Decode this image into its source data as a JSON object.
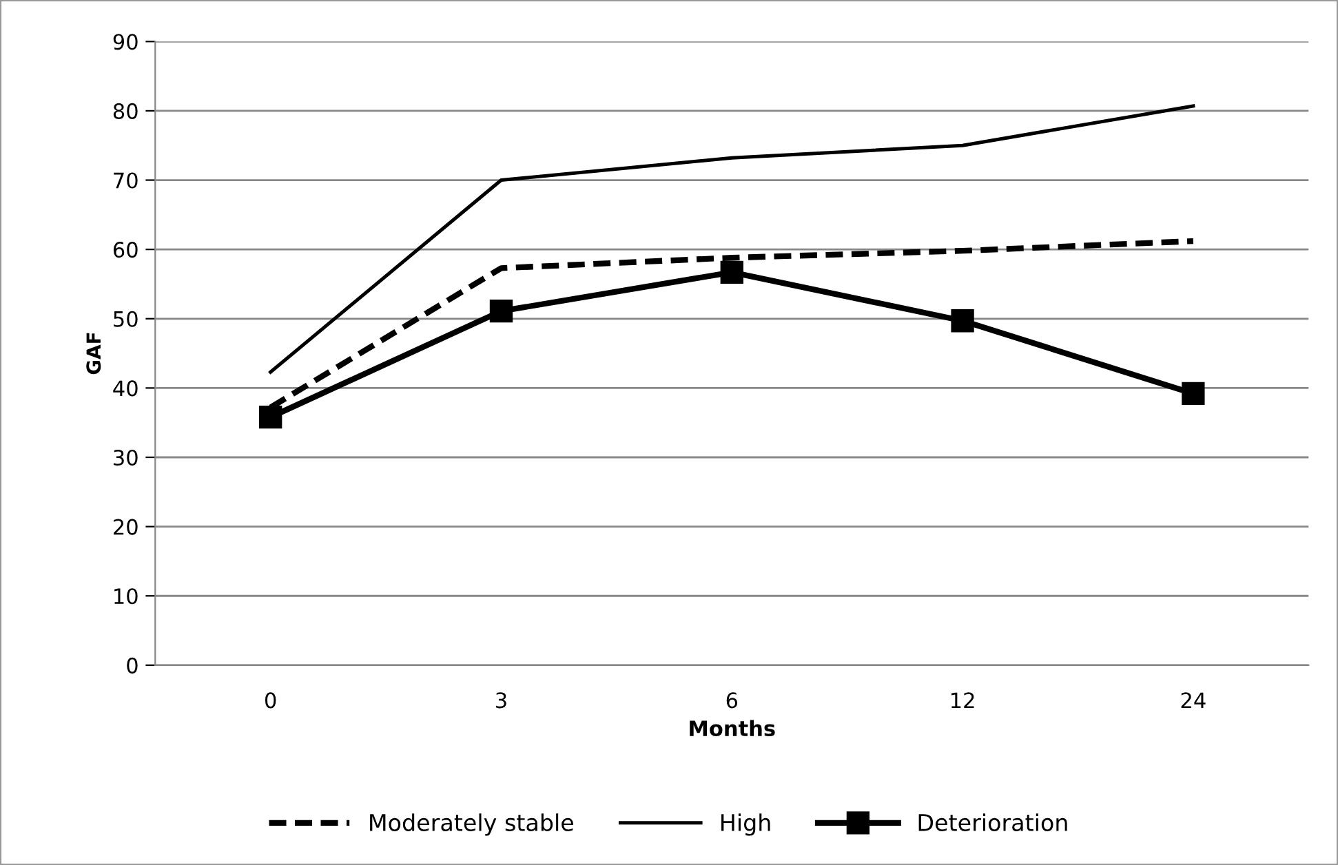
{
  "chart_data": {
    "type": "line",
    "xlabel": "Months",
    "ylabel": "GAF",
    "categories": [
      "0",
      "3",
      "6",
      "12",
      "24"
    ],
    "series": [
      {
        "name": "Moderately stable",
        "color": "#000000",
        "line_style": "dashed",
        "marker": "none",
        "values": [
          37.2,
          57.3,
          58.8,
          59.8,
          61.2
        ]
      },
      {
        "name": "High",
        "color": "#000000",
        "line_style": "solid",
        "marker": "none",
        "values": [
          42.3,
          70,
          73.2,
          75,
          80.7
        ]
      },
      {
        "name": "Deterioration",
        "color": "#000000",
        "line_style": "solid",
        "marker": "square",
        "values": [
          35.8,
          51.1,
          56.7,
          49.7,
          39.2
        ]
      }
    ],
    "ylim": [
      0,
      90
    ],
    "yticks": [
      0,
      10,
      20,
      30,
      40,
      50,
      60,
      70,
      80,
      90
    ],
    "grid": "y",
    "legend": "bottom"
  }
}
